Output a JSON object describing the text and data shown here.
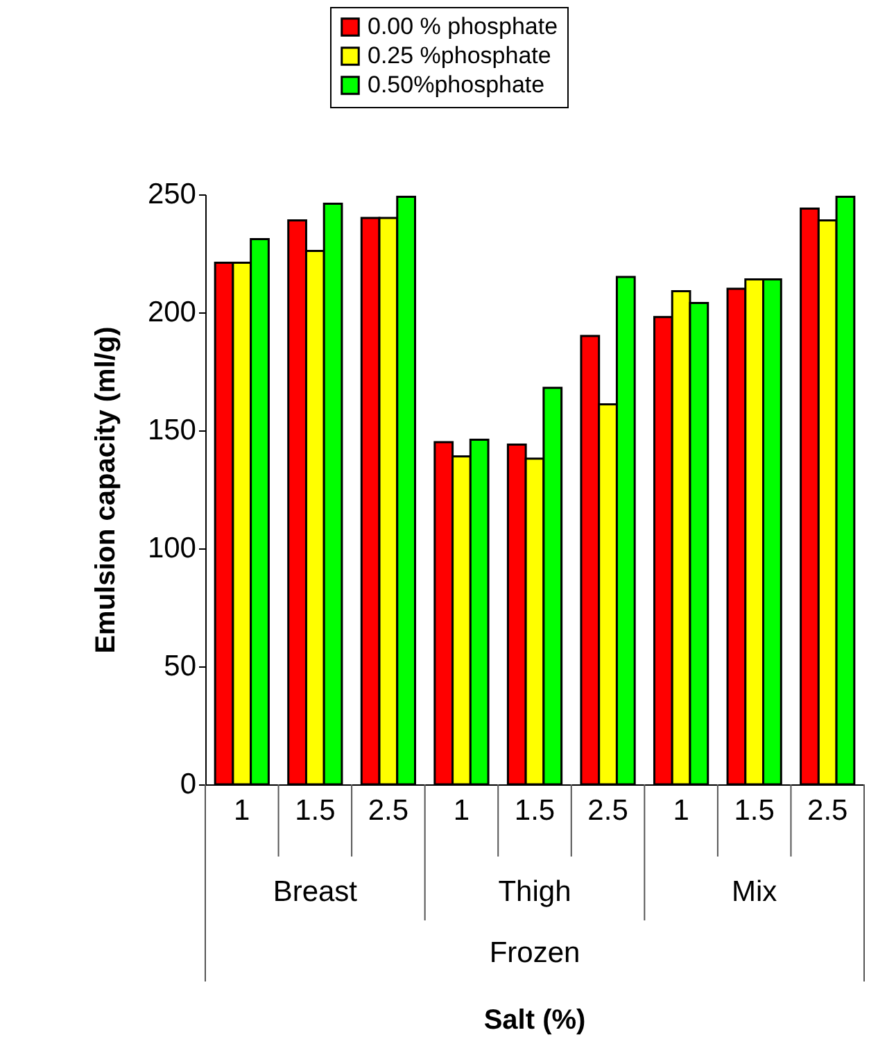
{
  "chart_data": {
    "type": "bar",
    "ylabel": "Emulsion capacity (ml/g)",
    "categories": [
      "1",
      "1.5",
      "2.5",
      "1",
      "1.5",
      "2.5",
      "1",
      "1.5",
      "2.5"
    ],
    "annotations": [
      "Breast",
      "Thigh",
      "Mix",
      "Frozen",
      "Salt (%)"
    ],
    "series": [
      {
        "name": "0.00 % phosphate",
        "color": "#ff0000",
        "values": [
          221,
          239,
          240,
          145,
          144,
          190,
          198,
          210,
          244
        ]
      },
      {
        "name": "0.25 %phosphate",
        "color": "#ffff00",
        "values": [
          221,
          226,
          240,
          139,
          138,
          161,
          209,
          214,
          239
        ]
      },
      {
        "name": "0.50%phosphate",
        "color": "#00ff00",
        "values": [
          231,
          246,
          249,
          146,
          168,
          215,
          204,
          214,
          249
        ]
      }
    ],
    "ylim": [
      0,
      250
    ],
    "yticks": [
      0,
      50,
      100,
      150,
      200,
      250
    ],
    "grid": false,
    "legend": "top"
  }
}
